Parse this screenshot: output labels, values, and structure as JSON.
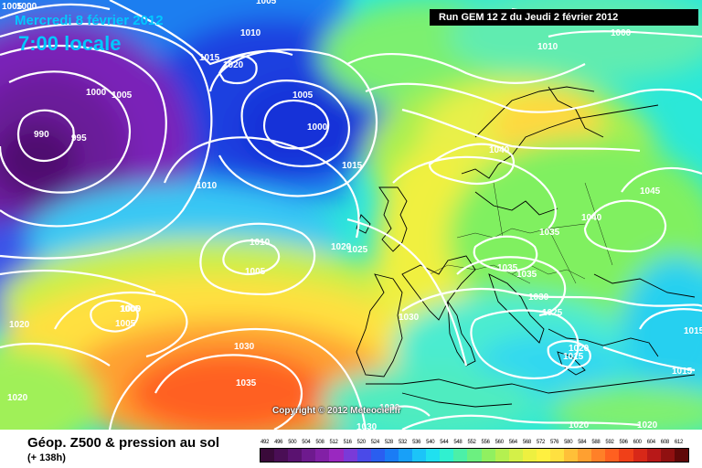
{
  "header": {
    "date_line": "Mercredi 8 février 2012",
    "time_line": "7:00 locale",
    "run_info": "Run GEM 12 Z du Jeudi 2 février 2012",
    "copyright": "Copyright © 2012 Meteociel.fr"
  },
  "legend": {
    "title": "Géop. Z500 & pression au sol",
    "subtitle": "(+ 138h)",
    "scale_values": [
      "492",
      "496",
      "500",
      "504",
      "508",
      "512",
      "516",
      "520",
      "524",
      "528",
      "532",
      "536",
      "540",
      "544",
      "548",
      "552",
      "556",
      "560",
      "564",
      "568",
      "572",
      "576",
      "580",
      "584",
      "588",
      "592",
      "596",
      "600",
      "604",
      "608",
      "612"
    ],
    "scale_colors": [
      "#3a0a3a",
      "#4a0e55",
      "#5a1270",
      "#6e1a8e",
      "#8220a6",
      "#9a28c0",
      "#7a3ad8",
      "#4a4ae8",
      "#2a5ef0",
      "#1a7cf5",
      "#18a0f8",
      "#1cc4f8",
      "#20e0f0",
      "#30f0d0",
      "#4cf0a8",
      "#6cf080",
      "#90f060",
      "#b4f050",
      "#d4f048",
      "#eef040",
      "#fff040",
      "#ffe040",
      "#ffc038",
      "#ffa030",
      "#ff8028",
      "#ff6020",
      "#f04018",
      "#d82818",
      "#b81818",
      "#901010",
      "#600808"
    ]
  },
  "isobar_labels": [
    {
      "id": "l1005a",
      "text": "1005"
    },
    {
      "id": "l1000a",
      "text": "1000"
    },
    {
      "id": "l1010a",
      "text": "1010"
    },
    {
      "id": "l1015a",
      "text": "1015"
    },
    {
      "id": "l1020a",
      "text": "1020"
    },
    {
      "id": "l1000b",
      "text": "1000"
    },
    {
      "id": "l1005b",
      "text": "1005"
    },
    {
      "id": "l990",
      "text": "990"
    },
    {
      "id": "l995",
      "text": "995"
    },
    {
      "id": "l1005c",
      "text": "1005"
    },
    {
      "id": "l1000c",
      "text": "1000"
    },
    {
      "id": "l1015b",
      "text": "1015"
    },
    {
      "id": "l1010b",
      "text": "1010"
    },
    {
      "id": "l1005d",
      "text": "1005"
    },
    {
      "id": "l1005top",
      "text": "1005"
    },
    {
      "id": "l1000top",
      "text": "1000"
    },
    {
      "id": "l1010top",
      "text": "1010"
    },
    {
      "id": "l1040a",
      "text": "1040"
    },
    {
      "id": "l1045",
      "text": "1045"
    },
    {
      "id": "l1040b",
      "text": "1040"
    },
    {
      "id": "l1010c",
      "text": "1010"
    },
    {
      "id": "l1005e",
      "text": "1005"
    },
    {
      "id": "l1020b",
      "text": "1020"
    },
    {
      "id": "l1025a",
      "text": "1025"
    },
    {
      "id": "l1035a",
      "text": "1035"
    },
    {
      "id": "l1035b",
      "text": "1035"
    },
    {
      "id": "l1035c",
      "text": "1035"
    },
    {
      "id": "l1030a",
      "text": "1030"
    },
    {
      "id": "l1025b",
      "text": "1025"
    },
    {
      "id": "l1030b",
      "text": "1030"
    },
    {
      "id": "l1020c",
      "text": "1020"
    },
    {
      "id": "l1015c",
      "text": "1015"
    },
    {
      "id": "l1000d",
      "text": "1000"
    },
    {
      "id": "l1005f",
      "text": "1005"
    },
    {
      "id": "l1020d",
      "text": "1020"
    },
    {
      "id": "l1020e",
      "text": "1020"
    },
    {
      "id": "l1030c",
      "text": "1030"
    },
    {
      "id": "l1035d",
      "text": "1035"
    },
    {
      "id": "l1030d",
      "text": "1030"
    },
    {
      "id": "l1030e",
      "text": "1030"
    },
    {
      "id": "l1020f",
      "text": "1020"
    },
    {
      "id": "l1020g",
      "text": "1020"
    },
    {
      "id": "l1015d",
      "text": "1015"
    },
    {
      "id": "l1015e",
      "text": "1015"
    }
  ]
}
